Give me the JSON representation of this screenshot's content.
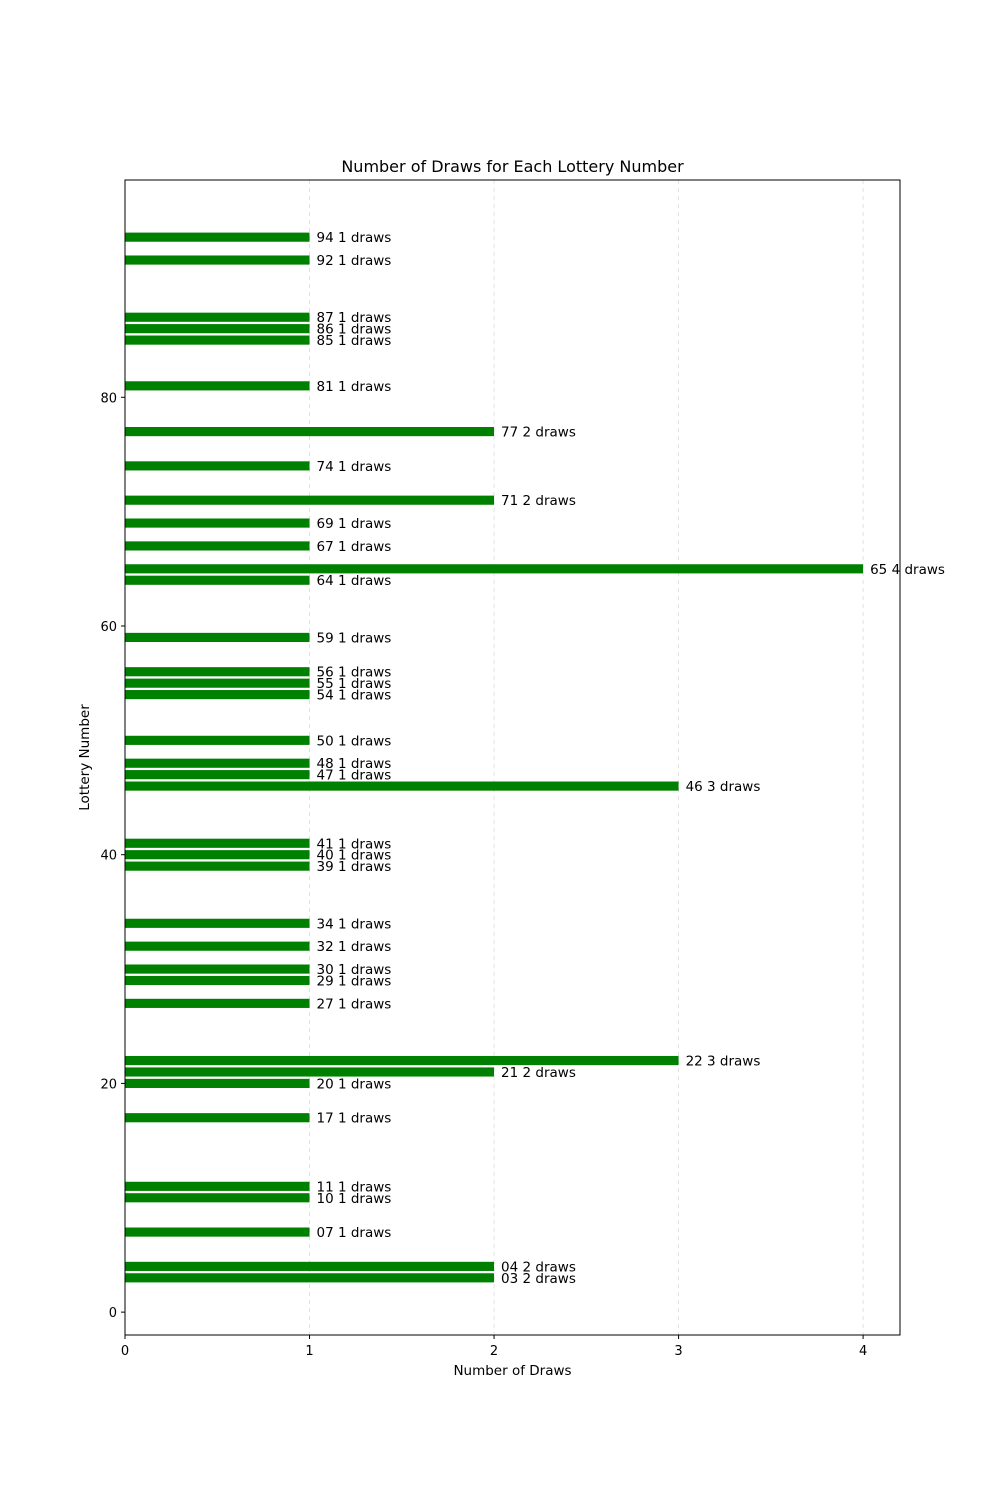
{
  "chart_data": {
    "type": "bar",
    "orientation": "horizontal",
    "title": "Number of Draws for Each Lottery Number",
    "xlabel": "Number of Draws",
    "ylabel": "Lottery Number",
    "xlim": [
      0,
      4.2
    ],
    "ylim": [
      -2,
      99
    ],
    "xticks": [
      "0",
      "1",
      "2",
      "3",
      "4"
    ],
    "yticks": [
      "0",
      "20",
      "40",
      "60",
      "80"
    ],
    "grid": "x-dashed",
    "bar_color": "#008000",
    "bars": [
      {
        "number": 3,
        "value": 2,
        "label": "03 2 draws"
      },
      {
        "number": 4,
        "value": 2,
        "label": "04 2 draws"
      },
      {
        "number": 7,
        "value": 1,
        "label": "07 1 draws"
      },
      {
        "number": 10,
        "value": 1,
        "label": "10 1 draws"
      },
      {
        "number": 11,
        "value": 1,
        "label": "11 1 draws"
      },
      {
        "number": 17,
        "value": 1,
        "label": "17 1 draws"
      },
      {
        "number": 20,
        "value": 1,
        "label": "20 1 draws"
      },
      {
        "number": 21,
        "value": 2,
        "label": "21 2 draws"
      },
      {
        "number": 22,
        "value": 3,
        "label": "22 3 draws"
      },
      {
        "number": 27,
        "value": 1,
        "label": "27 1 draws"
      },
      {
        "number": 29,
        "value": 1,
        "label": "29 1 draws"
      },
      {
        "number": 30,
        "value": 1,
        "label": "30 1 draws"
      },
      {
        "number": 32,
        "value": 1,
        "label": "32 1 draws"
      },
      {
        "number": 34,
        "value": 1,
        "label": "34 1 draws"
      },
      {
        "number": 39,
        "value": 1,
        "label": "39 1 draws"
      },
      {
        "number": 40,
        "value": 1,
        "label": "40 1 draws"
      },
      {
        "number": 41,
        "value": 1,
        "label": "41 1 draws"
      },
      {
        "number": 46,
        "value": 3,
        "label": "46 3 draws"
      },
      {
        "number": 47,
        "value": 1,
        "label": "47 1 draws"
      },
      {
        "number": 48,
        "value": 1,
        "label": "48 1 draws"
      },
      {
        "number": 50,
        "value": 1,
        "label": "50 1 draws"
      },
      {
        "number": 54,
        "value": 1,
        "label": "54 1 draws"
      },
      {
        "number": 55,
        "value": 1,
        "label": "55 1 draws"
      },
      {
        "number": 56,
        "value": 1,
        "label": "56 1 draws"
      },
      {
        "number": 59,
        "value": 1,
        "label": "59 1 draws"
      },
      {
        "number": 64,
        "value": 1,
        "label": "64 1 draws"
      },
      {
        "number": 65,
        "value": 4,
        "label": "65 4 draws"
      },
      {
        "number": 67,
        "value": 1,
        "label": "67 1 draws"
      },
      {
        "number": 69,
        "value": 1,
        "label": "69 1 draws"
      },
      {
        "number": 71,
        "value": 2,
        "label": "71 2 draws"
      },
      {
        "number": 74,
        "value": 1,
        "label": "74 1 draws"
      },
      {
        "number": 77,
        "value": 2,
        "label": "77 2 draws"
      },
      {
        "number": 81,
        "value": 1,
        "label": "81 1 draws"
      },
      {
        "number": 85,
        "value": 1,
        "label": "85 1 draws"
      },
      {
        "number": 86,
        "value": 1,
        "label": "86 1 draws"
      },
      {
        "number": 87,
        "value": 1,
        "label": "87 1 draws"
      },
      {
        "number": 92,
        "value": 1,
        "label": "92 1 draws"
      },
      {
        "number": 94,
        "value": 1,
        "label": "94 1 draws"
      }
    ]
  }
}
